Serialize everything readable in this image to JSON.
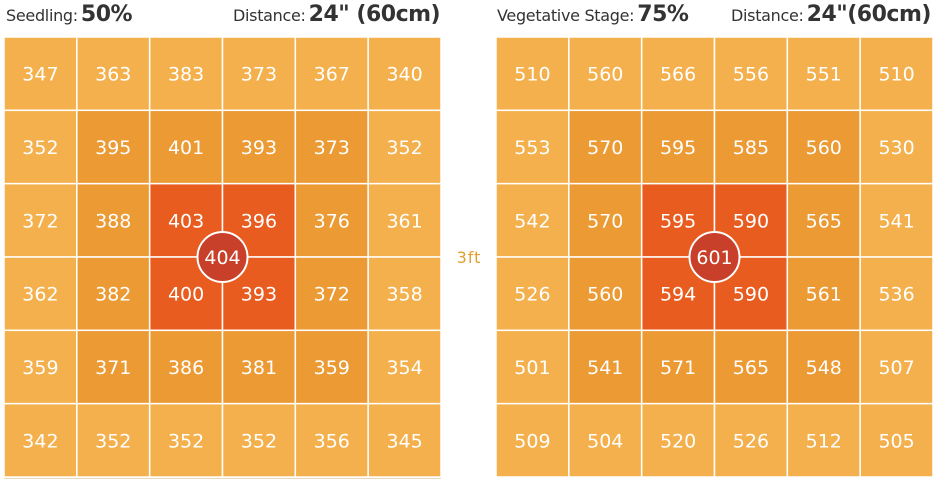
{
  "panels": [
    {
      "stage_label": "Seedling:",
      "stage_value": "50%",
      "distance_label": "Distance:",
      "distance_value": "24\" (60cm)"
    },
    {
      "stage_label": "Vegetative Stage:",
      "stage_value": "75%",
      "distance_label": "Distance:",
      "distance_value": "24\"(60cm)"
    }
  ],
  "center_label": "3ft",
  "colors": {
    "outer": "#f4b04c",
    "ring2": "#eb9a34",
    "inner": "#e85c1f",
    "center_marker": "#c8402a",
    "grid_line": "#ffffff",
    "text": "#ffffff",
    "label_accent": "#e0a030"
  },
  "chart_data": [
    {
      "type": "heatmap",
      "title": "Seedling: 50%",
      "rows": 6,
      "cols": 6,
      "values": [
        [
          347,
          363,
          383,
          373,
          367,
          340
        ],
        [
          352,
          395,
          401,
          393,
          373,
          352
        ],
        [
          372,
          388,
          403,
          396,
          376,
          361
        ],
        [
          362,
          382,
          400,
          393,
          372,
          358
        ],
        [
          359,
          371,
          386,
          381,
          359,
          354
        ],
        [
          342,
          352,
          352,
          352,
          356,
          345
        ]
      ],
      "center_value": 404
    },
    {
      "type": "heatmap",
      "title": "Vegetative Stage: 75%",
      "rows": 6,
      "cols": 6,
      "values": [
        [
          510,
          560,
          566,
          556,
          551,
          510
        ],
        [
          553,
          570,
          595,
          585,
          560,
          530
        ],
        [
          542,
          570,
          595,
          590,
          565,
          541
        ],
        [
          526,
          560,
          594,
          590,
          561,
          536
        ],
        [
          501,
          541,
          571,
          565,
          548,
          507
        ],
        [
          509,
          504,
          520,
          526,
          512,
          505
        ]
      ],
      "center_value": 601
    }
  ]
}
